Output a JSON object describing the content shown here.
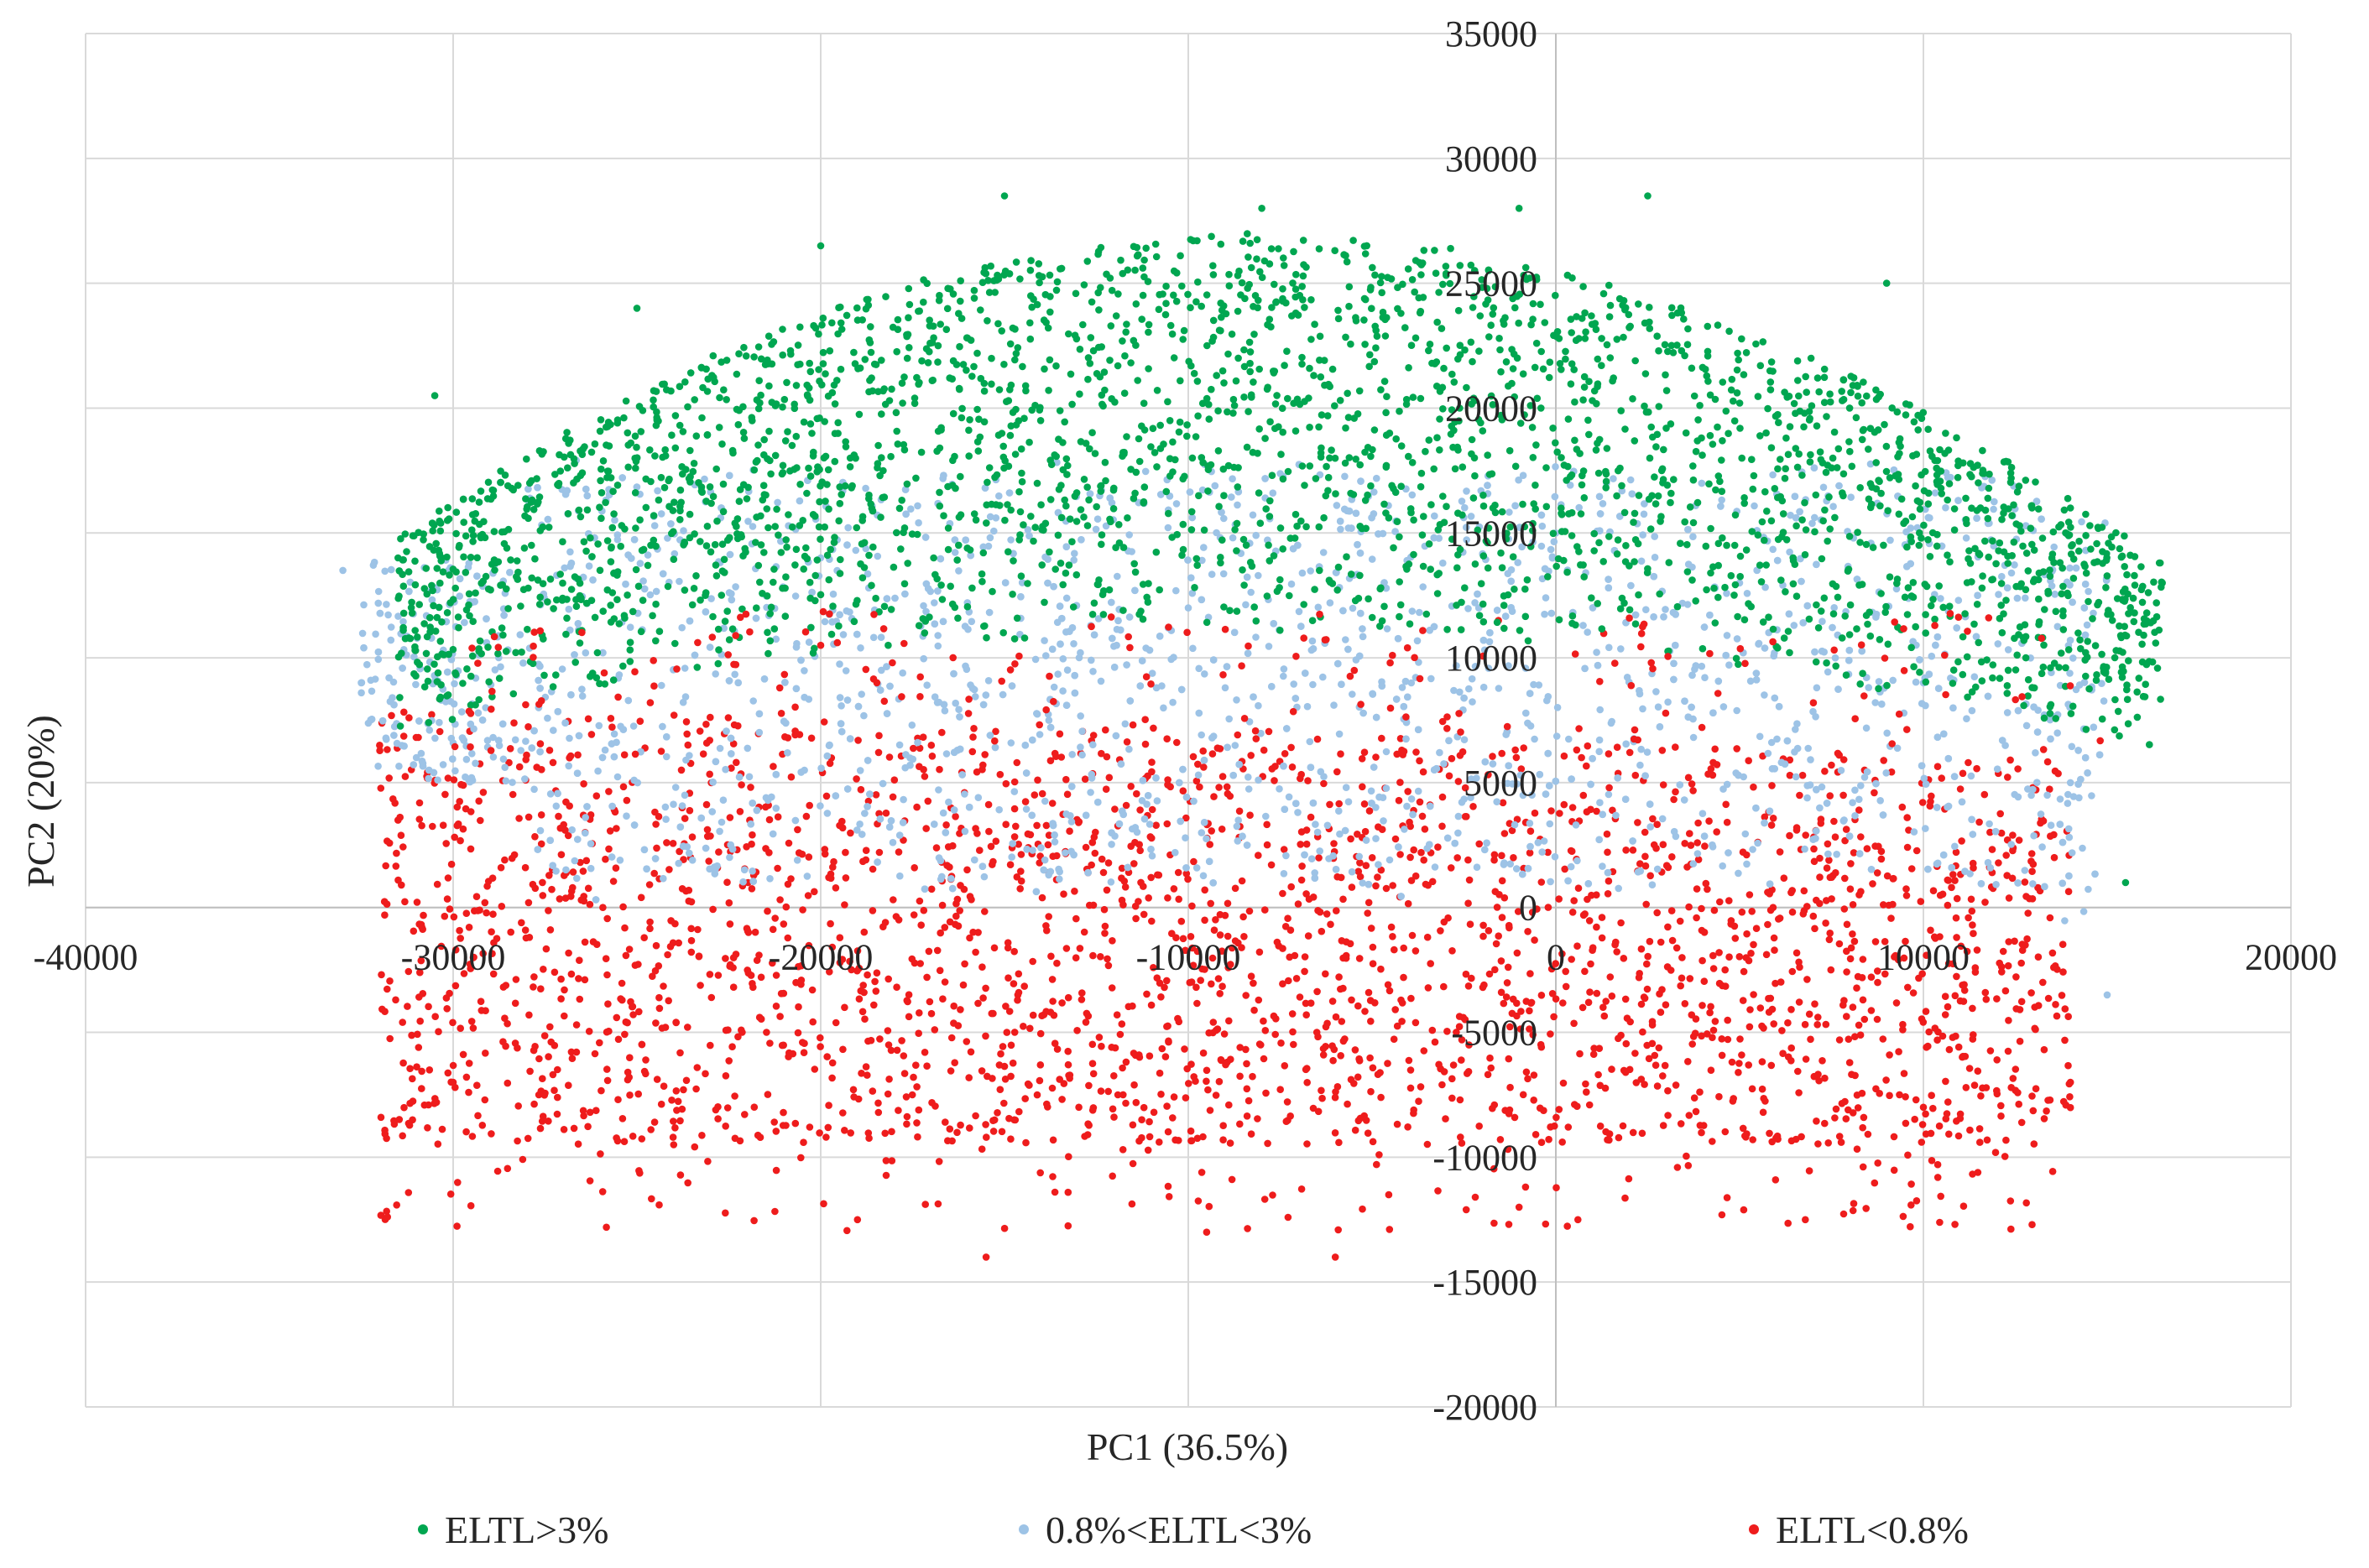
{
  "chart_data": {
    "type": "scatter",
    "title": "",
    "xlabel": "PC1  (36.5%)",
    "ylabel": "PC2 (20%)",
    "xlim": [
      -40000,
      20000
    ],
    "ylim": [
      -20000,
      35000
    ],
    "x_ticks": [
      -40000,
      -30000,
      -20000,
      -10000,
      0,
      10000,
      20000
    ],
    "y_ticks": [
      -20000,
      -15000,
      -10000,
      -5000,
      0,
      5000,
      10000,
      15000,
      20000,
      25000,
      30000,
      35000
    ],
    "grid": true,
    "legend_position": "bottom",
    "series": [
      {
        "name": "ELTL>3%",
        "color": "#00a650",
        "x_range": [
          -32000,
          16500
        ],
        "y_range": [
          -1000,
          29000
        ],
        "points": [
          [
            -30500,
            20500
          ],
          [
            -25000,
            24000
          ],
          [
            -15000,
            28500
          ],
          [
            -8000,
            28000
          ],
          [
            2500,
            28500
          ],
          [
            -1000,
            28000
          ],
          [
            9000,
            25000
          ],
          [
            14000,
            16000
          ],
          [
            16500,
            13000
          ],
          [
            15500,
            1000
          ],
          [
            -31500,
            14000
          ],
          [
            -20000,
            26500
          ]
        ]
      },
      {
        "name": "0.8%<ELTL<3%",
        "color": "#9dc3e6",
        "x_range": [
          -33000,
          15500
        ],
        "y_range": [
          -4000,
          19000
        ],
        "points": [
          [
            -33000,
            13500
          ],
          [
            -32500,
            9000
          ],
          [
            -31000,
            6000
          ],
          [
            -20000,
            14000
          ],
          [
            -10000,
            12000
          ],
          [
            0,
            15000
          ],
          [
            10000,
            9000
          ],
          [
            15000,
            -3500
          ],
          [
            14000,
            5000
          ],
          [
            5000,
            13000
          ]
        ]
      },
      {
        "name": "ELTL<0.8%",
        "color": "#ee1c1c",
        "x_range": [
          -32500,
          14500
        ],
        "y_range": [
          -14000,
          11500
        ],
        "points": [
          [
            -32000,
            6500
          ],
          [
            -31500,
            3500
          ],
          [
            -30000,
            -7000
          ],
          [
            -24000,
            -9500
          ],
          [
            -19000,
            -12500
          ],
          [
            -15500,
            -14000
          ],
          [
            -9500,
            -13000
          ],
          [
            -6000,
            -14000
          ],
          [
            -1000,
            -12000
          ],
          [
            600,
            -12500
          ],
          [
            10000,
            -8000
          ],
          [
            14000,
            -7000
          ],
          [
            -20000,
            10500
          ]
        ]
      }
    ]
  }
}
